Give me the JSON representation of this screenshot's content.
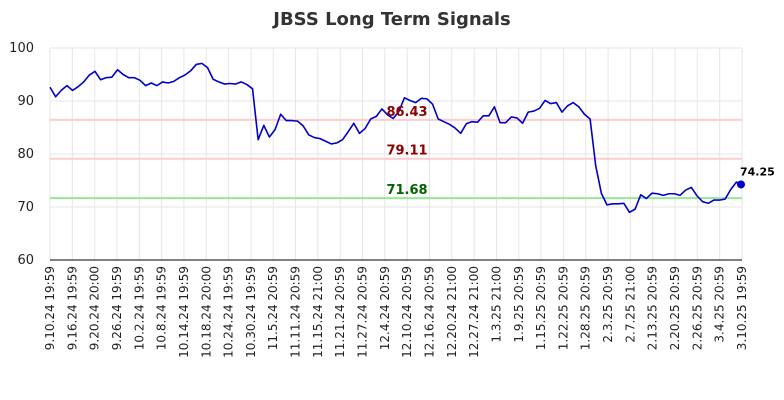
{
  "chart_data": {
    "type": "line",
    "title": "JBSS Long Term Signals",
    "ylim": [
      60,
      100
    ],
    "yticks": [
      60,
      70,
      80,
      90,
      100
    ],
    "grid": true,
    "x_tick_labels": [
      "9.10.24 19:59",
      "9.16.24 19:59",
      "9.20.24 20:00",
      "9.26.24 19:59",
      "10.2.24 19:59",
      "10.8.24 19:59",
      "10.14.24 19:59",
      "10.18.24 20:00",
      "10.24.24 19:59",
      "10.30.24 19:59",
      "11.5.24 20:59",
      "11.11.24 20:59",
      "11.15.24 21:00",
      "11.21.24 20:59",
      "11.27.24 20:59",
      "12.4.24 20:59",
      "12.10.24 20:59",
      "12.16.24 20:59",
      "12.20.24 21:00",
      "12.27.24 21:00",
      "1.3.25 21:00",
      "1.9.25 20:59",
      "1.15.25 20:59",
      "1.22.25 20:59",
      "1.28.25 20:59",
      "2.3.25 20:59",
      "2.7.25 21:00",
      "2.13.25 20:59",
      "2.20.25 20:59",
      "2.26.25 20:59",
      "3.4.25 20:59",
      "3.10.25 19:59"
    ],
    "series": [
      {
        "color": "#0000cc",
        "values": [
          92.6,
          90.8,
          92.0,
          92.9,
          92.0,
          92.7,
          93.6,
          94.9,
          95.6,
          94.0,
          94.4,
          94.5,
          95.9,
          95.0,
          94.4,
          94.4,
          93.9,
          92.9,
          93.4,
          92.9,
          93.6,
          93.4,
          93.7,
          94.4,
          94.9,
          95.7,
          96.9,
          97.1,
          96.3,
          94.1,
          93.6,
          93.2,
          93.3,
          93.2,
          93.6,
          93.1,
          92.3,
          82.7,
          85.4,
          83.2,
          84.6,
          87.5,
          86.3,
          86.3,
          86.2,
          85.3,
          83.6,
          83.1,
          82.9,
          82.4,
          81.9,
          82.1,
          82.7,
          84.2,
          85.8,
          83.9,
          84.8,
          86.6,
          87.1,
          88.5,
          87.4,
          86.7,
          88.0,
          90.6,
          90.1,
          89.7,
          90.5,
          90.4,
          89.4,
          86.6,
          86.1,
          85.6,
          84.9,
          83.9,
          85.7,
          86.1,
          86.0,
          87.2,
          87.2,
          88.9,
          85.9,
          85.9,
          87.0,
          86.8,
          85.8,
          87.9,
          88.1,
          88.6,
          90.1,
          89.5,
          89.7,
          87.9,
          89.1,
          89.7,
          88.9,
          87.5,
          86.6,
          77.8,
          72.6,
          70.4,
          70.6,
          70.6,
          70.7,
          69.0,
          69.6,
          72.3,
          71.6,
          72.6,
          72.5,
          72.2,
          72.5,
          72.5,
          72.2,
          73.2,
          73.7,
          72.1,
          71.0,
          70.7,
          71.3,
          71.3,
          71.5,
          73.3,
          74.7,
          74.25
        ]
      }
    ],
    "horizontal_lines": [
      {
        "value": 86.43,
        "label": "86.43",
        "line_color": "#ffcccc",
        "text_color": "#8b0000"
      },
      {
        "value": 79.11,
        "label": "79.11",
        "line_color": "#ffcccc",
        "text_color": "#8b0000"
      },
      {
        "value": 71.68,
        "label": "71.68",
        "line_color": "#99e699",
        "text_color": "#006400"
      }
    ],
    "last_label": "74.25",
    "last_value": 74.25
  }
}
